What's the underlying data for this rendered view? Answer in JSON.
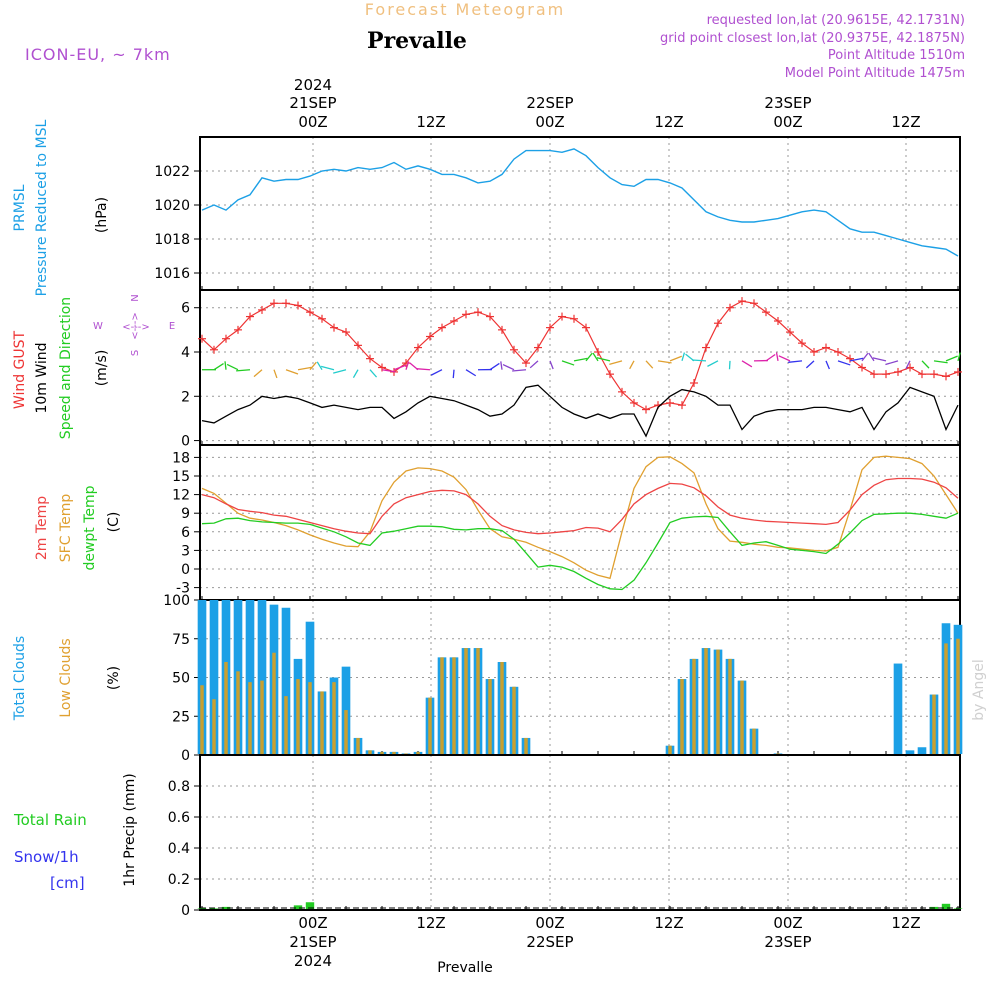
{
  "header": {
    "meteogram_label": "Forecast Meteogram",
    "place": "Prevalle",
    "model": "ICON-EU, ~ 7km",
    "requested": "requested lon,lat (20.9615E, 42.1731N)",
    "grid_point": "grid point closest lon,lat (20.9375E, 42.1875N)",
    "point_alt": "Point Altitude 1510m",
    "model_alt": "Model Point Altitude 1475m",
    "credit": "by Angel",
    "footer_place": "Prevalle"
  },
  "time_axis": {
    "start": "2024-09-20 15Z",
    "step_hours": 1,
    "n_hours": 64,
    "top_ticks": [
      {
        "label": "00Z",
        "date": "21SEP",
        "year": "2024"
      },
      {
        "label": "12Z"
      },
      {
        "label": "00Z",
        "date": "22SEP"
      },
      {
        "label": "12Z"
      },
      {
        "label": "00Z",
        "date": "23SEP"
      },
      {
        "label": "12Z"
      }
    ],
    "bottom_ticks": [
      {
        "label": "00Z",
        "date": "21SEP",
        "year": "2024"
      },
      {
        "label": "12Z"
      },
      {
        "label": "00Z",
        "date": "22SEP"
      },
      {
        "label": "12Z"
      },
      {
        "label": "00Z",
        "date": "23SEP"
      },
      {
        "label": "12Z"
      }
    ]
  },
  "panel_labels": {
    "pressure": {
      "l1": "PRMSL",
      "l2": "Pressure Reduced to MSL",
      "unit": "(hPa)"
    },
    "wind": {
      "l1": "Wind GUST",
      "l2": "10m Wind",
      "l3": "Speed and Direction",
      "unit": "(m/s)",
      "compass_n": "N",
      "compass_s": "S",
      "compass_w": "W",
      "compass_e": "E",
      "compass_h": "<--->"
    },
    "temp": {
      "l1": "2m Temp",
      "l2": "SFC Temp",
      "l3": "dewpt Temp",
      "unit": "(C)"
    },
    "clouds": {
      "l1": "Total Clouds",
      "l2": "Low Clouds",
      "unit": "(%)"
    },
    "precip": {
      "l1": "Total Rain",
      "l2": "Snow/1h",
      "l3": "[cm]",
      "unit": "1hr Precip (mm)"
    }
  },
  "colors": {
    "pressure": "#1ca0e6",
    "gust": "#ee3333",
    "wind": "#000000",
    "temp2m": "#ee4444",
    "sfc": "#e0a030",
    "dewpt": "#22cc22",
    "total_clouds": "#1ca0e6",
    "low_clouds": "#c8a030",
    "rain": "#22cc22",
    "snow": "#3333ee",
    "label_purple": "#b050d0",
    "header_orange": "#f0c080"
  },
  "chart_data": [
    {
      "type": "line",
      "name": "pressure",
      "ylim": [
        1015,
        1024
      ],
      "yticks": [
        1016,
        1018,
        1020,
        1022
      ],
      "series": [
        {
          "name": "PRMSL",
          "values": [
            1019.7,
            1020.0,
            1019.7,
            1020.3,
            1020.6,
            1021.6,
            1021.4,
            1021.5,
            1021.5,
            1021.7,
            1022.0,
            1022.1,
            1022.0,
            1022.2,
            1022.1,
            1022.2,
            1022.5,
            1022.1,
            1022.3,
            1022.1,
            1021.8,
            1021.8,
            1021.6,
            1021.3,
            1021.4,
            1021.8,
            1022.7,
            1023.2,
            1023.2,
            1023.2,
            1023.1,
            1023.3,
            1022.9,
            1022.2,
            1021.6,
            1021.2,
            1021.1,
            1021.5,
            1021.5,
            1021.3,
            1021.0,
            1020.3,
            1019.6,
            1019.3,
            1019.1,
            1019.0,
            1019.0,
            1019.1,
            1019.2,
            1019.4,
            1019.6,
            1019.7,
            1019.6,
            1019.1,
            1018.6,
            1018.4,
            1018.4,
            1018.2,
            1018.0,
            1017.8,
            1017.6,
            1017.5,
            1017.4,
            1017.0
          ]
        }
      ]
    },
    {
      "type": "line",
      "name": "wind",
      "ylim": [
        -0.2,
        6.8
      ],
      "yticks": [
        0,
        2,
        4,
        6
      ],
      "series": [
        {
          "name": "Wind GUST",
          "values": [
            4.6,
            4.1,
            4.6,
            5.0,
            5.6,
            5.9,
            6.2,
            6.2,
            6.1,
            5.8,
            5.5,
            5.1,
            4.9,
            4.3,
            3.7,
            3.3,
            3.1,
            3.5,
            4.2,
            4.7,
            5.1,
            5.4,
            5.7,
            5.8,
            5.6,
            5.0,
            4.1,
            3.5,
            4.2,
            5.1,
            5.6,
            5.5,
            5.1,
            4.0,
            3.0,
            2.2,
            1.7,
            1.4,
            1.6,
            1.7,
            1.6,
            2.6,
            4.2,
            5.3,
            6.0,
            6.3,
            6.2,
            5.8,
            5.4,
            4.9,
            4.4,
            4.0,
            4.2,
            4.0,
            3.7,
            3.3,
            3.0,
            3.0,
            3.1,
            3.3,
            3.0,
            3.0,
            2.9,
            3.1
          ]
        },
        {
          "name": "10m Wind",
          "values": [
            0.9,
            0.8,
            1.1,
            1.4,
            1.6,
            2.0,
            1.9,
            2.0,
            1.9,
            1.7,
            1.5,
            1.6,
            1.5,
            1.4,
            1.5,
            1.5,
            1.0,
            1.3,
            1.7,
            2.0,
            1.9,
            1.8,
            1.6,
            1.4,
            1.1,
            1.2,
            1.6,
            2.4,
            2.5,
            2.0,
            1.5,
            1.2,
            1.0,
            1.2,
            1.0,
            1.2,
            1.2,
            0.2,
            1.5,
            2.0,
            2.3,
            2.2,
            2.0,
            1.6,
            1.6,
            0.5,
            1.1,
            1.3,
            1.4,
            1.4,
            1.4,
            1.5,
            1.5,
            1.4,
            1.3,
            1.5,
            0.5,
            1.3,
            1.7,
            2.4,
            2.2,
            2.0,
            0.5,
            1.6
          ]
        }
      ]
    },
    {
      "type": "line",
      "name": "temperature",
      "ylim": [
        -5,
        20
      ],
      "yticks": [
        -3,
        0,
        3,
        6,
        9,
        12,
        15,
        18
      ],
      "series": [
        {
          "name": "2m Temp",
          "values": [
            12,
            11.5,
            10.5,
            9.6,
            9.3,
            9.1,
            8.7,
            8.5,
            8.0,
            7.5,
            7.0,
            6.5,
            6.1,
            5.8,
            5.7,
            8.5,
            10.5,
            11.5,
            12.0,
            12.5,
            12.7,
            12.6,
            12.0,
            10.5,
            8.5,
            7.0,
            6.3,
            5.9,
            5.7,
            5.8,
            6.0,
            6.2,
            6.7,
            6.6,
            6.0,
            8.0,
            10.5,
            12.0,
            13.0,
            13.8,
            13.7,
            13.1,
            11.8,
            10.0,
            8.7,
            8.2,
            7.9,
            7.7,
            7.6,
            7.5,
            7.4,
            7.3,
            7.2,
            7.5,
            9.5,
            12.0,
            13.5,
            14.4,
            14.6,
            14.6,
            14.5,
            14.0,
            13.1,
            11.4
          ]
        },
        {
          "name": "SFC Temp",
          "values": [
            13,
            12.2,
            10.6,
            9.0,
            8.2,
            7.9,
            7.5,
            7.0,
            6.3,
            5.5,
            4.8,
            4.2,
            3.7,
            3.6,
            6.0,
            11.0,
            14.0,
            15.8,
            16.3,
            16.2,
            15.8,
            14.8,
            12.8,
            9.5,
            6.5,
            5.2,
            4.8,
            4.3,
            3.5,
            2.8,
            2.0,
            1.0,
            -0.2,
            -1.0,
            -1.5,
            6.0,
            13.0,
            16.5,
            18.0,
            18.1,
            17.0,
            15.5,
            10.5,
            6.5,
            4.5,
            4.3,
            4.0,
            3.8,
            3.5,
            3.4,
            3.2,
            3.0,
            2.9,
            3.5,
            9.5,
            16.0,
            18.0,
            18.2,
            18.0,
            17.8,
            17.0,
            15.0,
            12.0,
            9.0
          ]
        },
        {
          "name": "dewpt Temp",
          "values": [
            7.3,
            7.4,
            8.1,
            8.2,
            7.8,
            7.6,
            7.5,
            7.4,
            7.4,
            7.2,
            6.6,
            6.0,
            5.2,
            4.2,
            3.8,
            5.8,
            6.1,
            6.5,
            6.9,
            6.9,
            6.8,
            6.4,
            6.3,
            6.5,
            6.5,
            6.2,
            4.8,
            2.6,
            0.3,
            0.6,
            0.3,
            -0.4,
            -1.5,
            -2.5,
            -3.2,
            -3.3,
            -1.8,
            1.0,
            4.2,
            7.5,
            8.2,
            8.4,
            8.5,
            8.3,
            6.0,
            3.8,
            4.2,
            4.4,
            3.8,
            3.2,
            3.0,
            2.8,
            2.5,
            4.0,
            5.8,
            7.8,
            8.8,
            8.9,
            9.0,
            9.0,
            8.8,
            8.5,
            8.2,
            9.0
          ]
        }
      ]
    },
    {
      "type": "bar",
      "name": "clouds",
      "ylim": [
        0,
        100
      ],
      "yticks": [
        0,
        25,
        50,
        75,
        100
      ],
      "series": [
        {
          "name": "Total Clouds",
          "values": [
            100,
            100,
            100,
            100,
            100,
            100,
            97,
            95,
            62,
            86,
            41,
            50,
            57,
            11,
            3,
            2,
            2,
            1,
            2,
            37,
            63,
            63,
            69,
            69,
            49,
            60,
            44,
            11,
            0,
            0,
            0,
            0,
            0,
            0,
            0,
            0,
            0,
            0,
            0,
            6,
            49,
            62,
            69,
            68,
            62,
            48,
            17,
            0,
            1,
            0,
            0,
            0,
            0,
            0,
            0,
            0,
            0,
            0,
            59,
            3,
            5,
            39,
            85,
            84
          ]
        },
        {
          "name": "Low Clouds",
          "values": [
            45,
            36,
            60,
            54,
            47,
            48,
            66,
            38,
            49,
            47,
            41,
            47,
            29,
            11,
            3,
            2,
            2,
            1,
            2,
            37,
            63,
            63,
            69,
            69,
            49,
            60,
            44,
            11,
            0,
            0,
            0,
            0,
            0,
            0,
            0,
            0,
            0,
            0,
            0,
            6,
            49,
            62,
            69,
            68,
            62,
            48,
            17,
            0,
            1,
            0,
            0,
            0,
            0,
            0,
            0,
            0,
            0,
            0,
            0,
            0,
            0,
            39,
            72,
            75
          ]
        }
      ]
    },
    {
      "type": "bar",
      "name": "precipitation",
      "ylim": [
        0,
        1.0
      ],
      "yticks": [
        0,
        0.2,
        0.4,
        0.6,
        0.8
      ],
      "series": [
        {
          "name": "Total Rain",
          "values": [
            0.01,
            0.01,
            0.02,
            0,
            0,
            0,
            0,
            0,
            0.03,
            0.05,
            0,
            0,
            0,
            0,
            0,
            0,
            0,
            0,
            0,
            0,
            0,
            0,
            0,
            0,
            0,
            0,
            0,
            0,
            0,
            0,
            0,
            0,
            0,
            0,
            0,
            0,
            0,
            0,
            0,
            0,
            0,
            0,
            0,
            0,
            0,
            0,
            0,
            0,
            0,
            0,
            0,
            0,
            0,
            0,
            0,
            0,
            0,
            0,
            0,
            0,
            0,
            0.02,
            0.04,
            0.01
          ]
        },
        {
          "name": "Snow/1h",
          "values": [
            0,
            0,
            0,
            0,
            0,
            0,
            0,
            0,
            0,
            0,
            0,
            0,
            0,
            0,
            0,
            0,
            0,
            0,
            0,
            0,
            0,
            0,
            0,
            0,
            0,
            0,
            0,
            0,
            0,
            0,
            0,
            0,
            0,
            0,
            0,
            0,
            0,
            0,
            0,
            0,
            0,
            0,
            0,
            0,
            0,
            0,
            0,
            0,
            0,
            0,
            0,
            0,
            0,
            0,
            0,
            0,
            0,
            0,
            0,
            0,
            0,
            0,
            0,
            0
          ]
        }
      ]
    }
  ]
}
